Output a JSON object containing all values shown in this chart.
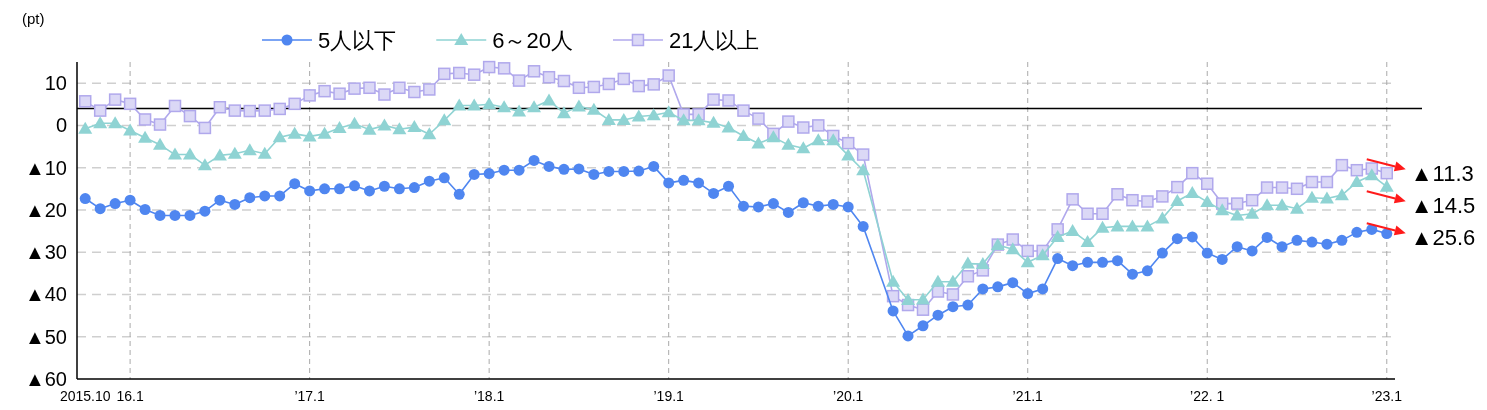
{
  "chart_data": {
    "type": "line",
    "ylabel": "(pt)",
    "categories": [
      "2015.10",
      null,
      null,
      "16.1",
      null,
      null,
      null,
      null,
      null,
      null,
      null,
      null,
      null,
      null,
      null,
      "’17.1",
      null,
      null,
      null,
      null,
      null,
      null,
      null,
      null,
      null,
      null,
      null,
      "’18.1",
      null,
      null,
      null,
      null,
      null,
      null,
      null,
      null,
      null,
      null,
      null,
      "’19.1",
      null,
      null,
      null,
      null,
      null,
      null,
      null,
      null,
      null,
      null,
      null,
      "’20.1",
      null,
      null,
      null,
      null,
      null,
      null,
      null,
      null,
      null,
      null,
      null,
      "’21.1",
      null,
      null,
      null,
      null,
      null,
      null,
      null,
      null,
      null,
      null,
      null,
      "’22. 1",
      null,
      null,
      null,
      null,
      null,
      null,
      null,
      null,
      null,
      null,
      null,
      "’23.1"
    ],
    "series": [
      {
        "name": "5人以下",
        "color": "#4f86f0",
        "marker": "circle",
        "values": [
          -17.3,
          -19.7,
          -18.5,
          -17.7,
          -19.9,
          -21.3,
          -21.3,
          -21.3,
          -20.3,
          -17.7,
          -18.7,
          -17.1,
          -16.7,
          -16.7,
          -13.8,
          -15.5,
          -15.0,
          -15.0,
          -14.3,
          -15.5,
          -14.4,
          -15.0,
          -14.7,
          -13.2,
          -12.4,
          -16.3,
          -11.6,
          -11.4,
          -10.6,
          -10.6,
          -8.3,
          -9.7,
          -10.4,
          -10.3,
          -11.6,
          -10.9,
          -10.9,
          -10.8,
          -9.7,
          -13.6,
          -13.0,
          -13.6,
          -16.1,
          -14.4,
          -19.1,
          -19.3,
          -18.5,
          -20.6,
          -18.3,
          -19.1,
          -18.7,
          -19.3,
          -23.9,
          null,
          -43.9,
          -49.8,
          -47.4,
          -44.9,
          -42.9,
          -42.5,
          -38.7,
          -38.2,
          -37.2,
          -39.8,
          -38.7,
          -31.5,
          -33.2,
          -32.4,
          -32.4,
          -32.0,
          -35.2,
          -34.4,
          -30.2,
          -26.8,
          -26.4,
          -30.2,
          -31.7,
          -28.7,
          -29.7,
          -26.5,
          -28.7,
          -27.2,
          -27.6,
          -28.1,
          -27.2,
          -25.3,
          -24.6,
          -25.6
        ]
      },
      {
        "name": "6～20人",
        "color": "#8fd3d3",
        "marker": "triangle",
        "values": [
          -0.8,
          0.5,
          0.5,
          -1.2,
          -2.9,
          -4.6,
          -6.9,
          -6.9,
          -9.4,
          -7.1,
          -6.7,
          -5.9,
          -6.7,
          -2.8,
          -2.0,
          -2.6,
          -2.0,
          -0.6,
          0.4,
          -1.0,
          0.0,
          -0.9,
          -0.4,
          -2.1,
          1.2,
          4.7,
          4.7,
          5.0,
          4.3,
          3.3,
          4.3,
          5.9,
          2.9,
          4.5,
          3.7,
          1.3,
          1.3,
          2.1,
          2.4,
          3.1,
          1.2,
          1.2,
          0.6,
          -0.5,
          -2.5,
          -4.3,
          -2.8,
          -4.6,
          -5.4,
          -3.5,
          -3.5,
          -7.1,
          -10.6,
          null,
          -37.0,
          -41.3,
          -41.2,
          -37.0,
          -37.0,
          -32.7,
          -32.8,
          -28.3,
          -29.3,
          -32.4,
          -30.7,
          -26.4,
          -25.0,
          -27.6,
          -24.2,
          -23.9,
          -23.9,
          -23.9,
          -22.0,
          -17.9,
          -16.0,
          -18.1,
          -20.1,
          -21.3,
          -20.9,
          -18.9,
          -18.9,
          -19.7,
          -17.1,
          -17.3,
          -16.5,
          -13.4,
          -11.8,
          -14.5
        ]
      },
      {
        "name": "21人以上",
        "color": "#b0a8ec",
        "marker": "square",
        "values": [
          5.7,
          3.5,
          6.1,
          5.1,
          1.4,
          0.2,
          4.6,
          2.2,
          -0.6,
          4.3,
          3.5,
          3.4,
          3.5,
          3.9,
          5.1,
          7.1,
          8.1,
          7.5,
          8.7,
          8.9,
          7.3,
          8.9,
          7.9,
          8.5,
          12.2,
          12.4,
          12.0,
          13.8,
          13.5,
          10.6,
          12.8,
          11.4,
          10.5,
          8.9,
          9.1,
          9.8,
          11.0,
          9.3,
          9.7,
          11.8,
          2.6,
          2.6,
          6.1,
          5.9,
          3.5,
          1.6,
          -2.0,
          0.9,
          -0.5,
          0.0,
          -2.5,
          -4.2,
          -6.9,
          null,
          -40.4,
          -42.5,
          -43.6,
          -39.3,
          -40.0,
          -35.7,
          -34.3,
          -28.2,
          -27.0,
          -29.7,
          -29.7,
          -24.6,
          -17.5,
          -20.9,
          -20.9,
          -16.3,
          -17.7,
          -18.0,
          -16.8,
          -14.6,
          -11.3,
          -13.8,
          -18.5,
          -18.5,
          -17.7,
          -14.7,
          -14.7,
          -15.0,
          -13.4,
          -13.4,
          -9.4,
          -10.6,
          -10.2,
          -11.3
        ]
      }
    ],
    "ylim": [
      -60,
      15
    ],
    "yticks": [
      {
        "value": -60,
        "label": "▲60"
      },
      {
        "value": -50,
        "label": "▲50"
      },
      {
        "value": -40,
        "label": "▲40"
      },
      {
        "value": -30,
        "label": "▲30"
      },
      {
        "value": -20,
        "label": "▲20"
      },
      {
        "value": -10,
        "label": "▲10"
      },
      0,
      10
    ],
    "ref_lines": [
      {
        "axis": "y",
        "value": 4,
        "color": "#000000"
      }
    ],
    "annotations": [
      {
        "text": "▲11.3",
        "x": "’23.1",
        "y": -11.3
      },
      {
        "text": "▲14.5",
        "x": "’23.1",
        "y": -14.5
      },
      {
        "text": "▲25.6",
        "x": "’23.1",
        "y": -25.6
      }
    ],
    "grid": true,
    "legend": "top",
    "line_style": "solid"
  }
}
